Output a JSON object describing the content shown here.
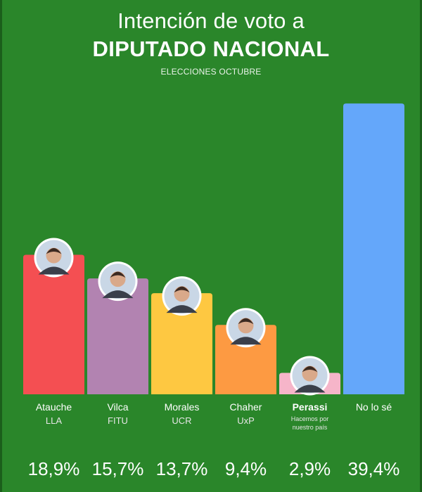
{
  "header": {
    "title_line1": "Intención de voto a",
    "title_line2": "DIPUTADO NACIONAL",
    "subtitle": "ELECCIONES OCTUBRE"
  },
  "chart_data": {
    "type": "bar",
    "ylim": [
      0,
      40
    ],
    "grid": false,
    "categories": [
      "Atauche",
      "Vilca",
      "Morales",
      "Chaher",
      "Perassi",
      "No lo sé"
    ],
    "parties": [
      "LLA",
      "FITU",
      "UCR",
      "UxP",
      "Hacemos por nuestro país",
      ""
    ],
    "values": [
      18.9,
      15.7,
      13.7,
      9.4,
      2.9,
      39.4
    ],
    "value_labels": [
      "18,9%",
      "15,7%",
      "13,7%",
      "9,4%",
      "2,9%",
      "39,4%"
    ],
    "colors": [
      "#f44f52",
      "#b283b1",
      "#fec841",
      "#fd9a42",
      "#f6b5c9",
      "#64a7fa"
    ],
    "avatar_icons": [
      "avatar-atauche-icon",
      "avatar-vilca-icon",
      "avatar-morales-icon",
      "avatar-chaher-icon",
      "avatar-perassi-icon",
      ""
    ]
  }
}
